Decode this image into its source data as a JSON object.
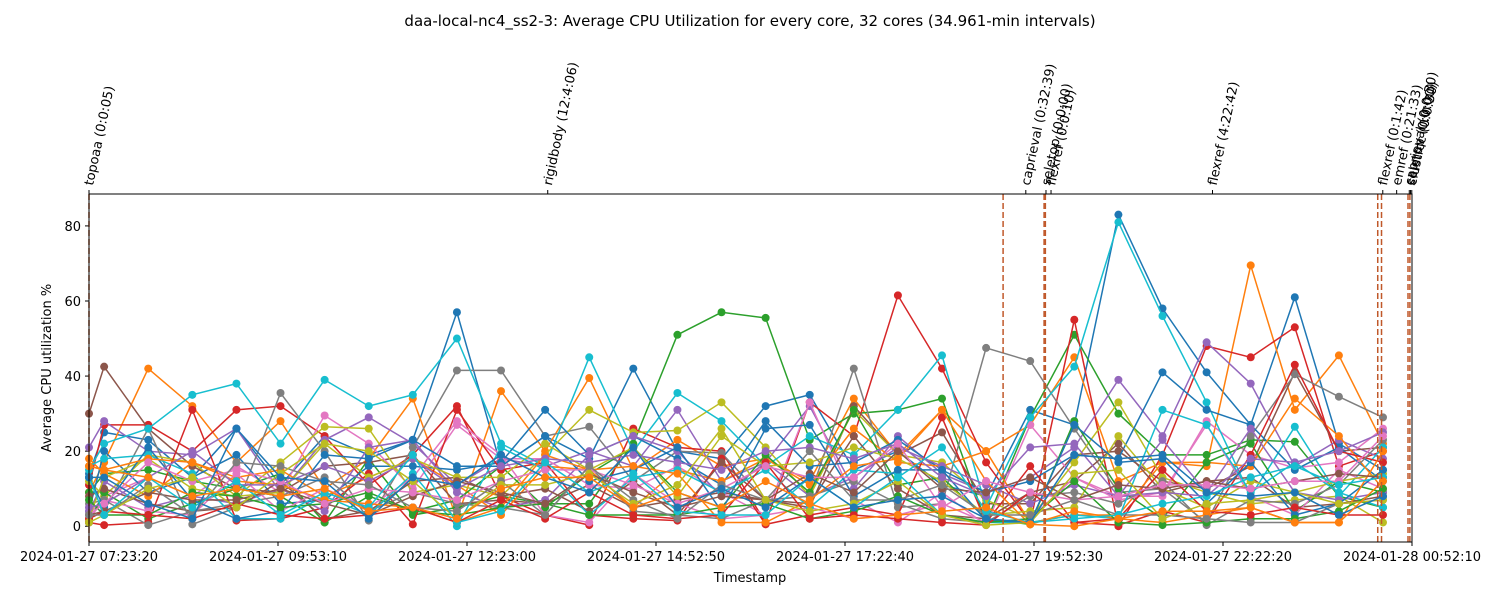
{
  "chart_data": {
    "type": "line",
    "title": "daa-local-nc4_ss2-3: Average CPU Utilization for every core, 32 cores (34.961-min intervals)",
    "x_label": "Timestamp",
    "y_label": "Average CPU utilization %",
    "x": [
      "2024-01-27 07:23:20",
      "2024-01-27 07:35:20",
      "2024-01-27 08:10:18",
      "2024-01-27 08:45:15",
      "2024-01-27 09:20:13",
      "2024-01-27 09:55:10",
      "2024-01-27 10:30:08",
      "2024-01-27 11:05:06",
      "2024-01-27 11:40:03",
      "2024-01-27 12:15:01",
      "2024-01-27 12:49:58",
      "2024-01-27 13:24:56",
      "2024-01-27 13:59:54",
      "2024-01-27 14:34:51",
      "2024-01-27 15:09:49",
      "2024-01-27 15:44:46",
      "2024-01-27 16:19:44",
      "2024-01-27 16:54:42",
      "2024-01-27 17:29:39",
      "2024-01-27 18:04:37",
      "2024-01-27 18:39:34",
      "2024-01-27 19:14:32",
      "2024-01-27 19:49:30",
      "2024-01-27 20:24:27",
      "2024-01-27 20:59:25",
      "2024-01-27 21:34:22",
      "2024-01-27 22:09:20",
      "2024-01-27 22:44:18",
      "2024-01-27 23:19:15",
      "2024-01-27 23:54:13",
      "2024-01-28 00:29:10"
    ],
    "xlim": [
      "2024-01-27 07:23:20",
      "2024-01-28 00:52:10"
    ],
    "xticks": [
      "2024-01-27 07:23:20",
      "2024-01-27 09:53:10",
      "2024-01-27 12:23:00",
      "2024-01-27 14:52:50",
      "2024-01-27 17:22:40",
      "2024-01-27 19:52:30",
      "2024-01-27 22:22:20",
      "2024-01-28 00:52:10"
    ],
    "ylim": [
      -4.2,
      88.5
    ],
    "yticks": [
      0,
      20,
      40,
      60,
      80
    ],
    "event_color": "#c0582a",
    "event_lines": [
      "2024-01-27 07:23:20",
      "2024-01-27 19:28:00",
      "2024-01-27 20:00:30",
      "2024-01-27 20:01:30",
      "2024-01-28 00:25:00",
      "2024-01-28 00:28:00",
      "2024-01-28 00:49:00",
      "2024-01-28 00:50:30"
    ],
    "events": [
      {
        "label": "topoaa (0:0:05)",
        "time": "2024-01-27 07:23:20"
      },
      {
        "label": "rigidbody (12:4:06)",
        "time": "2024-01-27 13:27:00"
      },
      {
        "label": "caprieval (0:32:39)",
        "time": "2024-01-27 19:46:00"
      },
      {
        "label": "seletop (0:0:00)",
        "time": "2024-01-27 20:02:00"
      },
      {
        "label": "flexref (0:0:10)",
        "time": "2024-01-27 20:06:00"
      },
      {
        "label": "flexref (4:22:42)",
        "time": "2024-01-27 22:14:00"
      },
      {
        "label": "flexref (0:1:42)",
        "time": "2024-01-28 00:29:00"
      },
      {
        "label": "emref (0:21:33)",
        "time": "2024-01-28 00:40:00"
      },
      {
        "label": "caprieval (0:0:30)",
        "time": "2024-01-28 00:50:00"
      },
      {
        "label": "seletop (0:0:00)",
        "time": "2024-01-28 00:51:00"
      },
      {
        "label": "clustfcc (0:0:30)",
        "time": "2024-01-28 00:52:00"
      }
    ],
    "series": [
      {
        "color": "#1f77b4",
        "values": [
          14,
          25,
          23,
          13,
          26,
          11,
          24,
          19,
          23,
          57,
          16,
          24,
          18,
          42,
          20,
          18,
          32,
          35,
          15,
          20,
          11,
          8,
          31,
          27,
          83,
          58,
          41,
          27,
          61,
          22,
          15
        ]
      },
      {
        "color": "#ff7f0e",
        "values": [
          9,
          17,
          42,
          32,
          17,
          28,
          10,
          18,
          34,
          2,
          36,
          20,
          39.5,
          15,
          23,
          16,
          18,
          12,
          34,
          19,
          31,
          20,
          27,
          45,
          12,
          17,
          16,
          69.5,
          31,
          45.5,
          22
        ]
      },
      {
        "color": "#2ca02c",
        "values": [
          9,
          14,
          15,
          12,
          10,
          14,
          1,
          18,
          3,
          5,
          8,
          6,
          6,
          22,
          51,
          57,
          55.5,
          23,
          30,
          31,
          34,
          1,
          29,
          51,
          30,
          19,
          19,
          23,
          22.5,
          8,
          5
        ]
      },
      {
        "color": "#d62728",
        "values": [
          11,
          27,
          27,
          20,
          31,
          32,
          24,
          11,
          19,
          32,
          8,
          3,
          0.3,
          26,
          21,
          20,
          1,
          33,
          24,
          61.5,
          42,
          17,
          1,
          55,
          0,
          19,
          48,
          45,
          53,
          16,
          20
        ]
      },
      {
        "color": "#9467bd",
        "values": [
          21,
          28,
          20,
          19,
          26,
          9,
          23,
          29,
          22,
          11,
          18,
          16,
          20,
          16,
          31,
          12,
          17,
          32,
          10,
          24,
          14,
          9,
          13,
          21,
          39,
          24,
          49,
          38,
          16,
          23,
          18
        ]
      },
      {
        "color": "#8c564b",
        "values": [
          30,
          42.5,
          26,
          16,
          10,
          9,
          16,
          17,
          19,
          6,
          7,
          6,
          11,
          5,
          7,
          9,
          7,
          5,
          32,
          19,
          25,
          6,
          6,
          19,
          20,
          12,
          10,
          16,
          41,
          20,
          21
        ]
      },
      {
        "color": "#e377c2",
        "values": [
          3,
          8,
          13,
          8,
          16,
          9,
          29.5,
          22,
          10,
          27,
          18,
          18,
          11,
          10,
          16,
          9,
          3,
          33,
          7,
          1,
          9,
          0.3,
          27,
          13,
          8,
          8,
          28,
          19,
          15.5,
          17,
          26
        ]
      },
      {
        "color": "#7f7f7f",
        "values": [
          2,
          4,
          26,
          0.5,
          5,
          35.5,
          20,
          1.5,
          21,
          41.5,
          41.5,
          24,
          26.5,
          12,
          20,
          19.5,
          7,
          8,
          42,
          5,
          6,
          47.5,
          44,
          26,
          9,
          10,
          1,
          24,
          40.5,
          34.5,
          29
        ]
      },
      {
        "color": "#bcbd22",
        "values": [
          12,
          8,
          19,
          17,
          8,
          17,
          26.5,
          26,
          9,
          11,
          8,
          19,
          31,
          25,
          25.5,
          33,
          21,
          8,
          31,
          19,
          17,
          7,
          2,
          17,
          33,
          13,
          9,
          6,
          7,
          8,
          1
        ]
      },
      {
        "color": "#17becf",
        "values": [
          15,
          22,
          26,
          35,
          38,
          22,
          39,
          32,
          35,
          50,
          22,
          16,
          45,
          20,
          35.5,
          28,
          16,
          24,
          19,
          31,
          45.5,
          5,
          29,
          42.5,
          81,
          56,
          33,
          8,
          26.5,
          8,
          21
        ]
      },
      {
        "color": "#1f77b4",
        "values": [
          4,
          20,
          9,
          13,
          19,
          6,
          7,
          16,
          16,
          15,
          17,
          31,
          19,
          24,
          18,
          11,
          28,
          16,
          17,
          23,
          15,
          9,
          12,
          19,
          18,
          41,
          31,
          27,
          15,
          21,
          12
        ]
      },
      {
        "color": "#ff7f0e",
        "values": [
          18,
          14,
          8,
          17,
          13,
          15,
          8,
          13,
          18,
          11,
          3,
          16,
          15,
          5,
          15,
          12,
          18,
          11,
          26,
          17,
          16,
          20,
          1,
          3,
          3,
          17,
          17,
          16,
          34,
          24,
          10
        ]
      },
      {
        "color": "#2ca02c",
        "values": [
          1,
          9,
          2,
          6,
          10,
          8,
          1,
          8,
          4,
          7,
          16,
          5,
          14,
          21,
          9,
          5,
          19,
          9,
          31,
          11,
          13,
          2,
          0.5,
          28,
          10,
          2,
          17,
          22,
          4,
          12,
          9
        ]
      },
      {
        "color": "#d62728",
        "values": [
          1,
          0.3,
          1,
          31,
          1.5,
          2,
          5,
          14,
          0.5,
          31,
          15,
          17,
          3,
          2,
          1.5,
          18,
          0.5,
          3,
          5,
          3,
          29,
          1,
          16,
          1,
          0.3,
          4,
          1,
          19,
          43,
          20,
          17
        ]
      },
      {
        "color": "#9467bd",
        "values": [
          4,
          12,
          5,
          8,
          6,
          10,
          4,
          21,
          23,
          9,
          5,
          7,
          19,
          24,
          20,
          8,
          17,
          8,
          13,
          21,
          16,
          11,
          6,
          11,
          8,
          23,
          9,
          26,
          9,
          7,
          9
        ]
      },
      {
        "color": "#8c564b",
        "values": [
          8,
          10,
          6,
          4,
          5,
          12,
          2,
          4,
          12,
          13,
          8,
          10,
          4,
          12,
          3,
          17,
          7,
          6,
          24,
          10,
          3,
          2,
          9,
          12,
          22,
          9,
          12,
          13,
          5,
          6,
          8
        ]
      },
      {
        "color": "#e377c2",
        "values": [
          2,
          7,
          4,
          3,
          14,
          4,
          10,
          5,
          13,
          28,
          19,
          3,
          1,
          14,
          6,
          2,
          3,
          5,
          2,
          3,
          6,
          1,
          2,
          13,
          7,
          9,
          27,
          8,
          3,
          15,
          10
        ]
      },
      {
        "color": "#7f7f7f",
        "values": [
          6,
          7,
          0.3,
          4,
          6,
          8,
          13,
          4,
          9,
          6,
          5,
          3,
          16,
          4,
          3,
          2,
          7,
          8,
          12,
          6,
          2,
          1,
          8,
          9,
          6,
          12,
          0.3,
          7,
          6,
          11,
          23
        ]
      },
      {
        "color": "#bcbd22",
        "values": [
          2,
          13,
          18,
          10,
          8,
          9,
          22,
          13,
          18,
          13,
          13,
          22,
          15,
          21,
          8,
          24,
          16,
          17,
          21,
          18,
          12,
          3,
          4,
          5,
          24,
          10,
          5,
          12,
          9,
          12,
          14
        ]
      },
      {
        "color": "#17becf",
        "values": [
          16,
          18,
          19,
          14,
          2,
          2,
          8,
          3,
          14,
          0,
          21,
          15,
          3,
          13,
          15,
          9,
          15,
          5,
          15,
          14,
          3,
          1,
          1,
          3,
          2,
          31,
          27,
          9,
          17,
          9,
          5
        ]
      },
      {
        "color": "#1f77b4",
        "values": [
          13,
          5,
          21,
          7,
          2,
          4,
          19,
          18,
          23,
          16,
          16,
          24,
          12,
          15,
          21,
          4,
          26,
          27,
          8,
          15,
          15,
          1.5,
          1,
          27,
          17,
          18,
          6,
          17,
          3,
          6,
          15
        ]
      },
      {
        "color": "#ff7f0e",
        "values": [
          16,
          15,
          18,
          17,
          12,
          11,
          7,
          6,
          5,
          1,
          5,
          19,
          15,
          16,
          14,
          1,
          1,
          7,
          16,
          18,
          31,
          12,
          0.5,
          4,
          2,
          1,
          3,
          5,
          1,
          1,
          20
        ]
      },
      {
        "color": "#2ca02c",
        "values": [
          7,
          3,
          3,
          9,
          8,
          5,
          6,
          9,
          4,
          3,
          5,
          6,
          3,
          3,
          3,
          5,
          6,
          2,
          4,
          8,
          3,
          1,
          2,
          12,
          1,
          0.3,
          1,
          2,
          2,
          4,
          10
        ]
      },
      {
        "color": "#d62728",
        "values": [
          2,
          4,
          3,
          2,
          6,
          3,
          2,
          3,
          5,
          1,
          7,
          2,
          9,
          3,
          2,
          3,
          17,
          2,
          3,
          2,
          1,
          0.3,
          9,
          1,
          2,
          15,
          4,
          3,
          5,
          3,
          3
        ]
      },
      {
        "color": "#9467bd",
        "values": [
          5,
          6,
          13,
          20,
          11,
          11,
          16,
          12,
          18,
          10,
          16,
          18,
          17,
          19,
          17,
          15,
          20,
          21,
          18,
          22,
          13,
          8,
          21,
          22,
          8,
          9,
          8,
          18,
          17,
          20,
          25
        ]
      },
      {
        "color": "#8c564b",
        "values": [
          3,
          4,
          9,
          7,
          7,
          10,
          6,
          3,
          8,
          12,
          9,
          6,
          14,
          9,
          5,
          8,
          7,
          14,
          9,
          20,
          10,
          9,
          13,
          7,
          11,
          10,
          12,
          10,
          12,
          14,
          13
        ]
      },
      {
        "color": "#e377c2",
        "values": [
          3,
          6,
          17,
          12,
          15,
          12,
          6,
          10,
          9,
          7,
          12,
          15,
          15,
          11,
          6,
          10,
          16,
          13,
          13,
          22,
          5,
          12,
          9,
          7,
          8,
          11,
          11,
          10,
          12,
          12,
          24
        ]
      },
      {
        "color": "#7f7f7f",
        "values": [
          3,
          3,
          11,
          3,
          17,
          16,
          12,
          11,
          5,
          4,
          12,
          3,
          16,
          7,
          2,
          11,
          7,
          20,
          7,
          7,
          11,
          3,
          3,
          7,
          3,
          3,
          2,
          1,
          1,
          6,
          7
        ]
      },
      {
        "color": "#bcbd22",
        "values": [
          1,
          3,
          10,
          13,
          5,
          14,
          22,
          20,
          12,
          2,
          11,
          11,
          14,
          6,
          11,
          26,
          7,
          4,
          6,
          12,
          3,
          0.3,
          1,
          14,
          15,
          2,
          6,
          7,
          9,
          6,
          7
        ]
      },
      {
        "color": "#17becf",
        "values": [
          13,
          3,
          13,
          5,
          12,
          3,
          9,
          5,
          19,
          1,
          4,
          17,
          9,
          14,
          4,
          3,
          3,
          13,
          5,
          13,
          21,
          4,
          1,
          2,
          3,
          6,
          8,
          13,
          16,
          11,
          13
        ]
      },
      {
        "color": "#1f77b4",
        "values": [
          13,
          13,
          6,
          2,
          26,
          13,
          12,
          2,
          13,
          11,
          19,
          13,
          9,
          21,
          5,
          10,
          5,
          13,
          5,
          7,
          8,
          2,
          1,
          19,
          18,
          19,
          9,
          8,
          9,
          3,
          8
        ]
      },
      {
        "color": "#ff7f0e",
        "values": [
          16,
          15,
          13,
          8,
          10,
          8,
          10,
          4,
          5,
          2,
          10,
          13,
          13,
          5,
          9,
          5,
          12,
          6,
          2,
          3,
          4,
          5,
          0.5,
          0,
          2,
          4,
          4,
          5,
          1,
          1,
          12
        ]
      }
    ]
  }
}
